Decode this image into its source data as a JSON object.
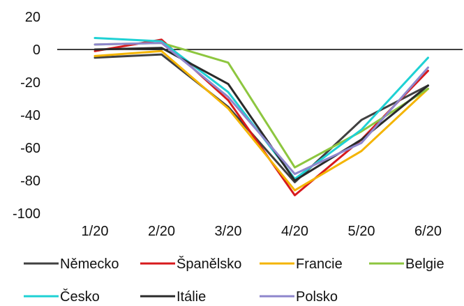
{
  "chart_data": {
    "type": "line",
    "title": "",
    "xlabel": "",
    "ylabel": "",
    "categories": [
      "1/20",
      "2/20",
      "3/20",
      "4/20",
      "5/20",
      "6/20"
    ],
    "ylim": [
      -100,
      20
    ],
    "yticks": [
      20,
      0,
      -20,
      -40,
      -60,
      -80,
      -100
    ],
    "grid": false,
    "legend_position": "bottom",
    "series": [
      {
        "name": "Německo",
        "color": "#404040",
        "values": [
          -5,
          -3,
          -35,
          -81,
          -43,
          -22
        ]
      },
      {
        "name": "Španělsko",
        "color": "#d7191c",
        "values": [
          -1,
          6,
          -31,
          -89,
          -55,
          -13
        ]
      },
      {
        "name": "Francie",
        "color": "#f4b400",
        "values": [
          -4,
          -1,
          -36,
          -86,
          -62,
          -24
        ]
      },
      {
        "name": "Belgie",
        "color": "#8dc63f",
        "values": [
          3,
          4,
          -8,
          -72,
          -50,
          -24
        ]
      },
      {
        "name": "Česko",
        "color": "#1fd1d4",
        "values": [
          7,
          5,
          -26,
          -79,
          -49,
          -5
        ]
      },
      {
        "name": "Itálie",
        "color": "#2a2a2a",
        "values": [
          0,
          1,
          -21,
          -80,
          -55,
          -22
        ]
      },
      {
        "name": "Polsko",
        "color": "#8e86cc",
        "values": [
          3,
          4,
          -29,
          -76,
          -57,
          -11
        ]
      }
    ]
  }
}
